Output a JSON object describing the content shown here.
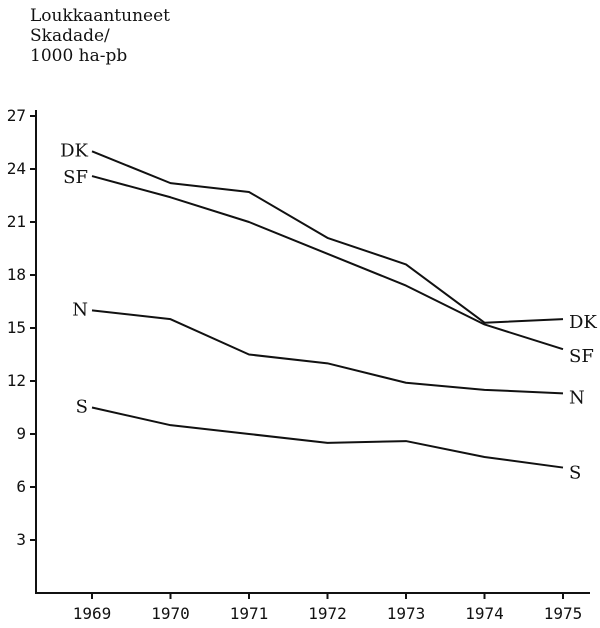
{
  "chart_data": {
    "type": "line",
    "ylabel_lines": [
      "Loukkaantuneet",
      "Skadade/",
      "1000 ha-pb"
    ],
    "x": [
      "1969",
      "1970",
      "1971",
      "1972",
      "1973",
      "1974",
      "1975"
    ],
    "yticks": [
      "3",
      "6",
      "9",
      "12",
      "15",
      "18",
      "21",
      "24",
      "27"
    ],
    "ylim": [
      0,
      27
    ],
    "grid": false,
    "series": [
      {
        "name": "DK",
        "values": [
          25.0,
          23.2,
          22.7,
          20.1,
          18.6,
          15.3,
          15.5
        ]
      },
      {
        "name": "SF",
        "values": [
          23.6,
          22.4,
          21.0,
          19.2,
          17.4,
          15.2,
          13.8
        ]
      },
      {
        "name": "N",
        "values": [
          16.0,
          15.5,
          13.5,
          13.0,
          11.9,
          11.5,
          11.3
        ]
      },
      {
        "name": "S",
        "values": [
          10.5,
          9.5,
          9.0,
          8.5,
          8.6,
          7.7,
          7.1
        ]
      }
    ]
  }
}
